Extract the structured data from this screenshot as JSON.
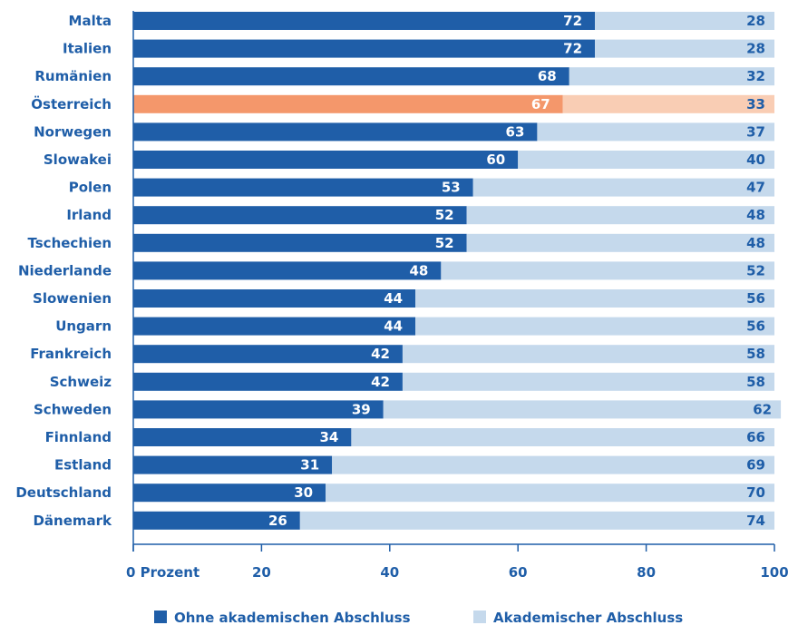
{
  "chart_data": {
    "type": "bar",
    "orientation": "horizontal",
    "stacked": true,
    "categories": [
      "Malta",
      "Italien",
      "Rumänien",
      "Österreich",
      "Norwegen",
      "Slowakei",
      "Polen",
      "Irland",
      "Tschechien",
      "Niederlande",
      "Slowenien",
      "Ungarn",
      "Frankreich",
      "Schweiz",
      "Schweden",
      "Finnland",
      "Estland",
      "Deutschland",
      "Dänemark"
    ],
    "series": [
      {
        "name": "Ohne akademischen Abschluss",
        "values": [
          72,
          72,
          68,
          67,
          63,
          60,
          53,
          52,
          52,
          48,
          44,
          44,
          42,
          42,
          39,
          34,
          31,
          30,
          26
        ]
      },
      {
        "name": "Akademischer Abschluss",
        "values": [
          28,
          28,
          32,
          33,
          37,
          40,
          47,
          48,
          48,
          52,
          56,
          56,
          58,
          58,
          62,
          66,
          69,
          70,
          74
        ]
      }
    ],
    "highlight_category": "Österreich",
    "xlim": [
      0,
      100
    ],
    "x_ticks": [
      0,
      20,
      40,
      60,
      80,
      100
    ],
    "x_tick_labels": [
      "0 Prozent",
      "20",
      "40",
      "60",
      "80",
      "100"
    ],
    "legend_position": "bottom",
    "grid": false,
    "colors": {
      "series1": "#1f5ea8",
      "series2": "#c5d9ec",
      "highlight1": "#f4976b",
      "highlight2": "#f9cdb4",
      "text": "#1f5ea8"
    }
  }
}
